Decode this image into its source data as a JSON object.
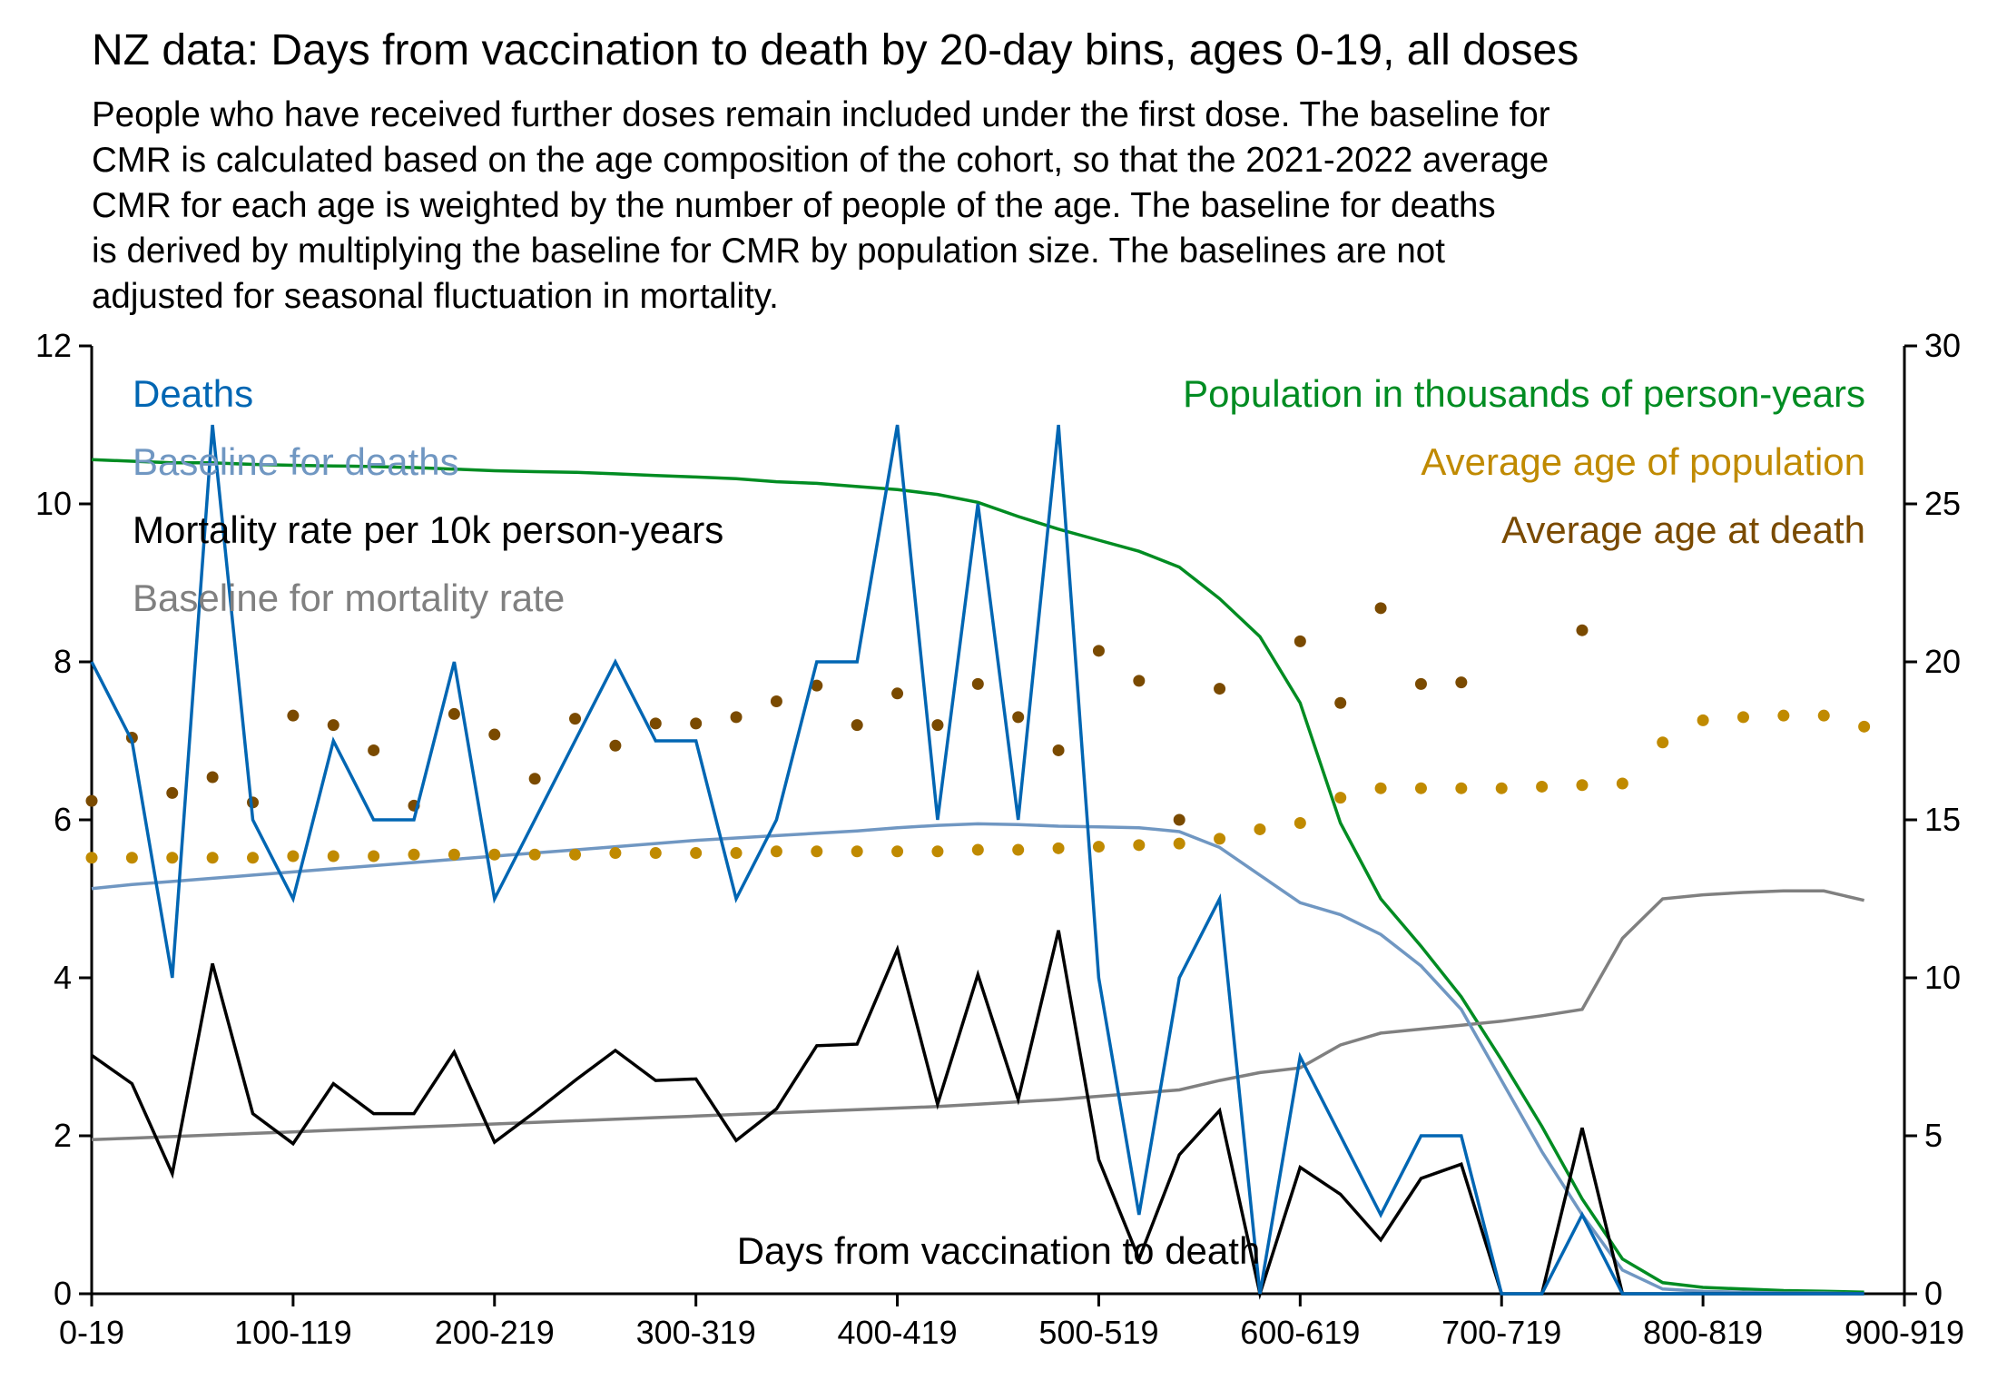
{
  "chart_data": {
    "type": "line",
    "title": "NZ data: Days from vaccination to death by 20-day bins, ages 0-19, all doses",
    "subtitle_lines": [
      "People who have received further doses remain included under the first dose. The baseline for",
      "CMR is calculated based on the age composition of the cohort, so that the 2021-2022 average",
      "CMR for each age is weighted by the number of people of the age. The baseline for deaths",
      "is derived by multiplying the baseline for CMR by population size. The baselines are not",
      "adjusted for seasonal fluctuation in mortality."
    ],
    "xlabel": "Days from vaccination to death",
    "x_tick_labels": [
      "0-19",
      "100-119",
      "200-219",
      "300-319",
      "400-419",
      "500-519",
      "600-619",
      "700-719",
      "800-819",
      "900-919"
    ],
    "x_bin_count_axis": 46,
    "left_axis": {
      "ylim": [
        0,
        12
      ],
      "ticks": [
        0,
        2,
        4,
        6,
        8,
        10,
        12
      ]
    },
    "right_axis": {
      "ylim": [
        0,
        30
      ],
      "ticks": [
        0,
        5,
        10,
        15,
        20,
        25,
        30
      ]
    },
    "grid": false,
    "legend_left": [
      {
        "name": "Deaths",
        "color": "#0066b3"
      },
      {
        "name": "Baseline for deaths",
        "color": "#7097c2"
      },
      {
        "name": "Mortality rate per 10k person-years",
        "color": "#000000"
      },
      {
        "name": "Baseline for mortality rate",
        "color": "#808080"
      }
    ],
    "legend_right": [
      {
        "name": "Population in thousands of person-years",
        "color": "#008c22"
      },
      {
        "name": "Average age of population",
        "color": "#c08a00"
      },
      {
        "name": "Average age at death",
        "color": "#7a4a00"
      }
    ],
    "series": [
      {
        "name": "Deaths",
        "axis": "left",
        "style": "line",
        "color": "#0066b3",
        "values": [
          8,
          7,
          4,
          11,
          6,
          5,
          7,
          6,
          6,
          8,
          5,
          6,
          7,
          8,
          7,
          7,
          5,
          6,
          8,
          8,
          11,
          6,
          10,
          6,
          11,
          4,
          1,
          4,
          5,
          0,
          3,
          2,
          1,
          2,
          2,
          0,
          0,
          1,
          0,
          0,
          0,
          0,
          0,
          0,
          0
        ]
      },
      {
        "name": "Baseline for deaths",
        "axis": "left",
        "style": "line",
        "color": "#7097c2",
        "values": [
          5.13,
          5.18,
          5.22,
          5.26,
          5.3,
          5.34,
          5.38,
          5.42,
          5.46,
          5.5,
          5.54,
          5.58,
          5.62,
          5.66,
          5.7,
          5.74,
          5.77,
          5.8,
          5.83,
          5.86,
          5.9,
          5.93,
          5.95,
          5.94,
          5.92,
          5.91,
          5.9,
          5.85,
          5.65,
          5.3,
          4.95,
          4.8,
          4.55,
          4.15,
          3.6,
          2.7,
          1.8,
          1.0,
          0.3,
          0.06,
          0.03,
          0.02,
          0.01,
          0.01,
          0.0
        ]
      },
      {
        "name": "Mortality rate per 10k person-years",
        "axis": "left",
        "style": "line",
        "color": "#000000",
        "values": [
          3.02,
          2.66,
          1.52,
          4.18,
          2.28,
          1.9,
          2.66,
          2.28,
          2.28,
          3.06,
          1.92,
          2.3,
          2.7,
          3.08,
          2.7,
          2.72,
          1.94,
          2.34,
          3.14,
          3.16,
          4.36,
          2.4,
          4.04,
          2.46,
          4.6,
          1.7,
          0.44,
          1.76,
          2.32,
          0.0,
          1.6,
          1.26,
          0.68,
          1.46,
          1.64,
          0.0,
          0.0,
          2.1,
          0.0,
          0.0,
          0.0,
          0.0,
          0.0,
          0.0,
          0.0
        ]
      },
      {
        "name": "Baseline for mortality rate",
        "axis": "left",
        "style": "line",
        "color": "#808080",
        "values": [
          1.95,
          1.97,
          1.99,
          2.01,
          2.03,
          2.05,
          2.07,
          2.09,
          2.11,
          2.13,
          2.15,
          2.17,
          2.19,
          2.21,
          2.23,
          2.25,
          2.27,
          2.29,
          2.31,
          2.33,
          2.35,
          2.37,
          2.4,
          2.43,
          2.46,
          2.5,
          2.54,
          2.58,
          2.7,
          2.8,
          2.86,
          3.15,
          3.3,
          3.35,
          3.4,
          3.45,
          3.52,
          3.6,
          4.5,
          5.0,
          5.05,
          5.08,
          5.1,
          5.1,
          4.98
        ]
      },
      {
        "name": "Population in thousands of person-years",
        "axis": "right",
        "style": "line",
        "color": "#008c22",
        "values": [
          26.4,
          26.35,
          26.3,
          26.3,
          26.25,
          26.22,
          26.2,
          26.18,
          26.15,
          26.1,
          26.05,
          26.02,
          26.0,
          25.95,
          25.9,
          25.85,
          25.8,
          25.7,
          25.65,
          25.55,
          25.45,
          25.3,
          25.05,
          24.6,
          24.2,
          23.85,
          23.5,
          23.0,
          22.0,
          20.8,
          18.7,
          14.9,
          12.5,
          11.0,
          9.4,
          7.4,
          5.3,
          3.0,
          1.1,
          0.35,
          0.2,
          0.15,
          0.1,
          0.08,
          0.05
        ]
      },
      {
        "name": "Average age of population",
        "axis": "right",
        "style": "dots",
        "color": "#c08a00",
        "values": [
          13.8,
          13.8,
          13.8,
          13.8,
          13.8,
          13.85,
          13.85,
          13.85,
          13.9,
          13.9,
          13.9,
          13.9,
          13.9,
          13.95,
          13.95,
          13.95,
          13.95,
          14.0,
          14.0,
          14.0,
          14.0,
          14.0,
          14.05,
          14.05,
          14.1,
          14.15,
          14.2,
          14.25,
          14.4,
          14.7,
          14.9,
          15.7,
          16.0,
          16.0,
          16.0,
          16.0,
          16.05,
          16.1,
          16.15,
          17.45,
          18.15,
          18.25,
          18.3,
          18.3,
          17.95
        ]
      },
      {
        "name": "Average age at death",
        "axis": "right",
        "style": "dots",
        "color": "#7a4a00",
        "values": [
          15.6,
          17.6,
          15.85,
          16.35,
          15.55,
          18.3,
          18.0,
          17.2,
          15.45,
          18.35,
          17.7,
          16.3,
          18.2,
          17.35,
          18.05,
          18.05,
          18.25,
          18.75,
          19.25,
          18.0,
          19.0,
          18.0,
          19.3,
          18.25,
          17.2,
          20.35,
          19.4,
          15.0,
          19.15,
          null,
          20.65,
          18.7,
          21.7,
          19.3,
          19.35,
          null,
          null,
          21.0,
          null,
          null,
          null,
          null,
          null,
          null,
          null
        ]
      }
    ]
  }
}
